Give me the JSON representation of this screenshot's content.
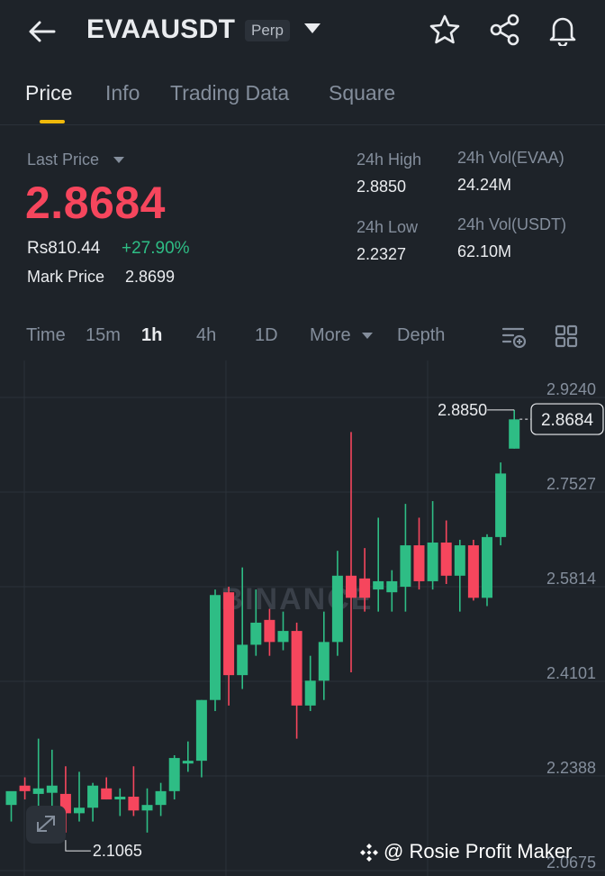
{
  "header": {
    "symbol": "EVAAUSDT",
    "contract_type": "Perp",
    "icons": [
      "back-arrow-icon",
      "chevron-down-icon",
      "star-icon",
      "share-icon",
      "bell-icon"
    ]
  },
  "tabs": [
    "Price",
    "Info",
    "Trading Data",
    "Square"
  ],
  "active_tab": "Price",
  "ticker": {
    "last_price_label": "Last Price",
    "last_price": "2.8684",
    "fiat_price": "Rs810.44",
    "change_pct": "+27.90%",
    "mark_price_label": "Mark Price",
    "mark_price": "2.8699",
    "high_label": "24h High",
    "high": "2.8850",
    "low_label": "24h Low",
    "low": "2.2327",
    "vol_base_label": "24h Vol(EVAA)",
    "vol_base": "24.24M",
    "vol_quote_label": "24h Vol(USDT)",
    "vol_quote": "62.10M"
  },
  "intervals": [
    "Time",
    "15m",
    "1h",
    "4h",
    "1D",
    "More",
    "Depth"
  ],
  "selected_interval": "1h",
  "colors": {
    "up": "#2ebd85",
    "down": "#f6465d",
    "accent": "#f0b90b",
    "background": "#1e2329"
  },
  "chart_data": {
    "type": "candlestick",
    "y_ticks": [
      "2.9240",
      "2.7527",
      "2.5814",
      "2.4101",
      "2.2388",
      "2.0675"
    ],
    "ylim": [
      2.0675,
      2.924
    ],
    "watermark": "BINANCE",
    "last_price_tag": "2.8684",
    "high_marker": "2.8850",
    "low_marker": "2.1065",
    "candles": [
      {
        "o": 2.17,
        "h": 2.19,
        "l": 2.14,
        "c": 2.195
      },
      {
        "o": 2.205,
        "h": 2.22,
        "l": 2.18,
        "c": 2.195
      },
      {
        "o": 2.19,
        "h": 2.29,
        "l": 2.14,
        "c": 2.2
      },
      {
        "o": 2.192,
        "h": 2.27,
        "l": 2.15,
        "c": 2.205
      },
      {
        "o": 2.19,
        "h": 2.24,
        "l": 2.12,
        "c": 2.155
      },
      {
        "o": 2.155,
        "h": 2.23,
        "l": 2.14,
        "c": 2.165
      },
      {
        "o": 2.165,
        "h": 2.21,
        "l": 2.14,
        "c": 2.205
      },
      {
        "o": 2.2,
        "h": 2.22,
        "l": 2.18,
        "c": 2.18
      },
      {
        "o": 2.18,
        "h": 2.2,
        "l": 2.15,
        "c": 2.185
      },
      {
        "o": 2.185,
        "h": 2.24,
        "l": 2.15,
        "c": 2.16
      },
      {
        "o": 2.16,
        "h": 2.2,
        "l": 2.12,
        "c": 2.17
      },
      {
        "o": 2.17,
        "h": 2.21,
        "l": 2.15,
        "c": 2.195
      },
      {
        "o": 2.195,
        "h": 2.26,
        "l": 2.18,
        "c": 2.255
      },
      {
        "o": 2.245,
        "h": 2.285,
        "l": 2.23,
        "c": 2.25
      },
      {
        "o": 2.25,
        "h": 2.36,
        "l": 2.22,
        "c": 2.36
      },
      {
        "o": 2.36,
        "h": 2.56,
        "l": 2.34,
        "c": 2.55
      },
      {
        "o": 2.555,
        "h": 2.565,
        "l": 2.35,
        "c": 2.405
      },
      {
        "o": 2.405,
        "h": 2.6,
        "l": 2.38,
        "c": 2.46
      },
      {
        "o": 2.46,
        "h": 2.56,
        "l": 2.44,
        "c": 2.5
      },
      {
        "o": 2.505,
        "h": 2.525,
        "l": 2.44,
        "c": 2.465
      },
      {
        "o": 2.465,
        "h": 2.52,
        "l": 2.45,
        "c": 2.485
      },
      {
        "o": 2.485,
        "h": 2.5,
        "l": 2.29,
        "c": 2.35
      },
      {
        "o": 2.35,
        "h": 2.44,
        "l": 2.34,
        "c": 2.395
      },
      {
        "o": 2.395,
        "h": 2.52,
        "l": 2.36,
        "c": 2.465
      },
      {
        "o": 2.465,
        "h": 2.63,
        "l": 2.44,
        "c": 2.585
      },
      {
        "o": 2.585,
        "h": 2.845,
        "l": 2.41,
        "c": 2.545
      },
      {
        "o": 2.58,
        "h": 2.635,
        "l": 2.52,
        "c": 2.545
      },
      {
        "o": 2.56,
        "h": 2.69,
        "l": 2.52,
        "c": 2.575
      },
      {
        "o": 2.555,
        "h": 2.595,
        "l": 2.52,
        "c": 2.575
      },
      {
        "o": 2.565,
        "h": 2.715,
        "l": 2.52,
        "c": 2.64
      },
      {
        "o": 2.64,
        "h": 2.69,
        "l": 2.56,
        "c": 2.575
      },
      {
        "o": 2.575,
        "h": 2.72,
        "l": 2.56,
        "c": 2.645
      },
      {
        "o": 2.645,
        "h": 2.685,
        "l": 2.57,
        "c": 2.585
      },
      {
        "o": 2.585,
        "h": 2.65,
        "l": 2.52,
        "c": 2.64
      },
      {
        "o": 2.64,
        "h": 2.65,
        "l": 2.54,
        "c": 2.545
      },
      {
        "o": 2.545,
        "h": 2.66,
        "l": 2.53,
        "c": 2.655
      },
      {
        "o": 2.655,
        "h": 2.79,
        "l": 2.64,
        "c": 2.77
      },
      {
        "o": 2.815,
        "h": 2.885,
        "l": 2.815,
        "c": 2.868
      }
    ]
  },
  "footer": {
    "watermark": "@ Rosie Profit Maker"
  }
}
